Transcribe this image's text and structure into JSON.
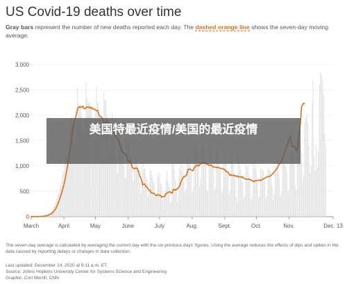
{
  "title": "US Covid-19 deaths over time",
  "subtitle": {
    "part1": "Gray bars",
    "part2": " represent the number of new deaths reported each day. The ",
    "part3": "dashed orange line",
    "part4": " shows the seven-day moving average."
  },
  "overlay_text": "美国特最近疫情/美国的最近疫情",
  "note": "The seven-day average is calculated by averaging the current day with the six previous days' figures. Using the average reduces the effects of dips and spikes in the data caused by reporting delays or changes in data collection.",
  "footer": {
    "updated": "Last updated: December 14, 2020 at 9:11 a.m. ET",
    "source": "Source: Johns Hopkins University Center for Systems Science and Engineering",
    "graphic": "Graphic: Curt Merrill, CNN"
  },
  "colors": {
    "bars": "#e2e2e2",
    "line": "#d4711c",
    "grid": "#d6d6d6",
    "text": "#333333"
  },
  "chart_data": {
    "type": "bar",
    "ylim": [
      0,
      3000
    ],
    "yticks": [
      0,
      500,
      1000,
      1500,
      2000,
      2500,
      3000
    ],
    "ytick_labels": [
      "0",
      "500",
      "1,000",
      "1,500",
      "2,000",
      "2,500",
      "3,000"
    ],
    "xlim": [
      "2020-03-01",
      "2020-12-13"
    ],
    "xticks": [
      "2020-03-01",
      "2020-04-01",
      "2020-05-01",
      "2020-06-01",
      "2020-07-01",
      "2020-08-01",
      "2020-09-01",
      "2020-10-01",
      "2020-11-01",
      "2020-12-13"
    ],
    "xtick_labels": [
      "March",
      "April",
      "May",
      "June",
      "July",
      "Aug.",
      "Sept.",
      "Oct.",
      "Nov.",
      "Dec. 13"
    ],
    "grid": true,
    "series": [
      {
        "type": "bar",
        "frequency": "daily",
        "start": "2020-03-01",
        "values": [
          0,
          1,
          2,
          1,
          2,
          3,
          5,
          4,
          5,
          8,
          10,
          12,
          18,
          22,
          28,
          35,
          52,
          60,
          85,
          110,
          130,
          170,
          220,
          290,
          350,
          420,
          480,
          560,
          640,
          720,
          820,
          900,
          1060,
          1230,
          1260,
          1320,
          1480,
          1860,
          1960,
          2000,
          1700,
          1450,
          1560,
          1950,
          2540,
          2250,
          2180,
          2200,
          2000,
          1750,
          1670,
          1890,
          2650,
          2350,
          2250,
          2260,
          2230,
          2170,
          1960,
          1580,
          1470,
          2050,
          2560,
          2250,
          2150,
          1990,
          1620,
          1530,
          1610,
          2450,
          2300,
          2300,
          2000,
          1850,
          1580,
          1300,
          1820,
          2050,
          1850,
          1700,
          1500,
          1150,
          850,
          1330,
          1640,
          1380,
          1430,
          1300,
          1080,
          760,
          780,
          1520,
          1420,
          1300,
          1040,
          1220,
          940,
          700,
          1050,
          1300,
          1080,
          1020,
          830,
          700,
          460,
          650,
          1050,
          950,
          960,
          800,
          740,
          400,
          500,
          930,
          900,
          800,
          700,
          660,
          380,
          400,
          850,
          780,
          880,
          650,
          640,
          330,
          380,
          520,
          720,
          900,
          700,
          620,
          270,
          300,
          1100,
          1050,
          930,
          720,
          580,
          300,
          450,
          950,
          1050,
          910,
          1010,
          820,
          480,
          550,
          1220,
          1180,
          1150,
          1020,
          900,
          480,
          580,
          1350,
          1360,
          1400,
          1280,
          1120,
          590,
          760,
          1450,
          1430,
          1330,
          1180,
          1090,
          530,
          500,
          1350,
          1400,
          1250,
          1080,
          980,
          520,
          580,
          1300,
          1320,
          1180,
          1000,
          900,
          470,
          550,
          1280,
          1240,
          1140,
          950,
          880,
          440,
          500,
          1150,
          1120,
          1040,
          880,
          750,
          400,
          310,
          1230,
          1000,
          940,
          830,
          700,
          370,
          420,
          1070,
          980,
          990,
          830,
          720,
          320,
          400,
          1140,
          960,
          1060,
          920,
          680,
          360,
          420,
          930,
          970,
          930,
          890,
          700,
          360,
          420,
          960,
          930,
          920,
          840,
          620,
          340,
          470,
          1020,
          880,
          1120,
          950,
          780,
          420,
          510,
          1130,
          1040,
          1130,
          990,
          880,
          500,
          560,
          1090,
          1280,
          1240,
          1250,
          1170,
          620,
          530,
          1550,
          1600,
          1700,
          1460,
          1270,
          700,
          820,
          1860,
          1950,
          2040,
          1850,
          1400,
          850,
          1000,
          2260,
          2700,
          1200,
          900,
          1400,
          960,
          1300,
          2600,
          2850,
          2800,
          2700,
          2400,
          1650,
          1400
        ]
      },
      {
        "type": "line",
        "style": "dashed",
        "frequency": "daily",
        "start": "2020-03-01",
        "values": [
          0,
          0,
          1,
          1,
          1,
          2,
          2,
          3,
          4,
          5,
          6,
          8,
          10,
          13,
          17,
          21,
          28,
          36,
          46,
          58,
          73,
          92,
          117,
          149,
          188,
          234,
          287,
          345,
          408,
          476,
          548,
          623,
          712,
          820,
          937,
          1046,
          1176,
          1325,
          1485,
          1641,
          1772,
          1867,
          1951,
          2025,
          2126,
          2152,
          2175,
          2157,
          2155,
          2176,
          2135,
          2127,
          2147,
          2167,
          2160,
          2159,
          2137,
          2156,
          2129,
          2129,
          2130,
          2102,
          2089,
          2095,
          2035,
          1987,
          1977,
          1952,
          1925,
          1853,
          1827,
          1866,
          1888,
          1853,
          1853,
          1792,
          1775,
          1770,
          1758,
          1659,
          1588,
          1567,
          1526,
          1506,
          1433,
          1371,
          1330,
          1262,
          1250,
          1232,
          1224,
          1182,
          1094,
          1084,
          1104,
          1051,
          980,
          953,
          943,
          956,
          962,
          942,
          889,
          810,
          777,
          707,
          628,
          644,
          640,
          597,
          587,
          553,
          517,
          515,
          476,
          465,
          462,
          452,
          429,
          408,
          436,
          426,
          427,
          412,
          385,
          398,
          395,
          408,
          448,
          466,
          478,
          485,
          491,
          467,
          463,
          530,
          539,
          524,
          542,
          545,
          584,
          600,
          663,
          717,
          759,
          787,
          785,
          811,
          838,
          923,
          939,
          940,
          919,
          910,
          917,
          966,
          980,
          1019,
          1009,
          994,
          1018,
          1050,
          1050,
          1061,
          1065,
          1049,
          1059,
          1035,
          1026,
          1012,
          1016,
          1016,
          996,
          977,
          983,
          975,
          968,
          975,
          967,
          958,
          949,
          949,
          947,
          935,
          925,
          898,
          879,
          877,
          850,
          809,
          825,
          815,
          819,
          807,
          811,
          793,
          807,
          785,
          787,
          779,
          778,
          789,
          757,
          750,
          741,
          739,
          735,
          740,
          734,
          722,
          714,
          700,
          693,
          709,
          707,
          713,
          718,
          724,
          712,
          727,
          736,
          746,
          758,
          771,
          782,
          791,
          791,
          799,
          816,
          831,
          852,
          875,
          906,
          931,
          961,
          1008,
          1041,
          1064,
          1105,
          1150,
          1216,
          1275,
          1340,
          1394,
          1451,
          1519,
          1575,
          1509,
          1405,
          1374,
          1383,
          1359,
          1308,
          1335,
          1501,
          1672,
          1861,
          2158,
          2217,
          2236,
          2225
        ]
      }
    ]
  }
}
